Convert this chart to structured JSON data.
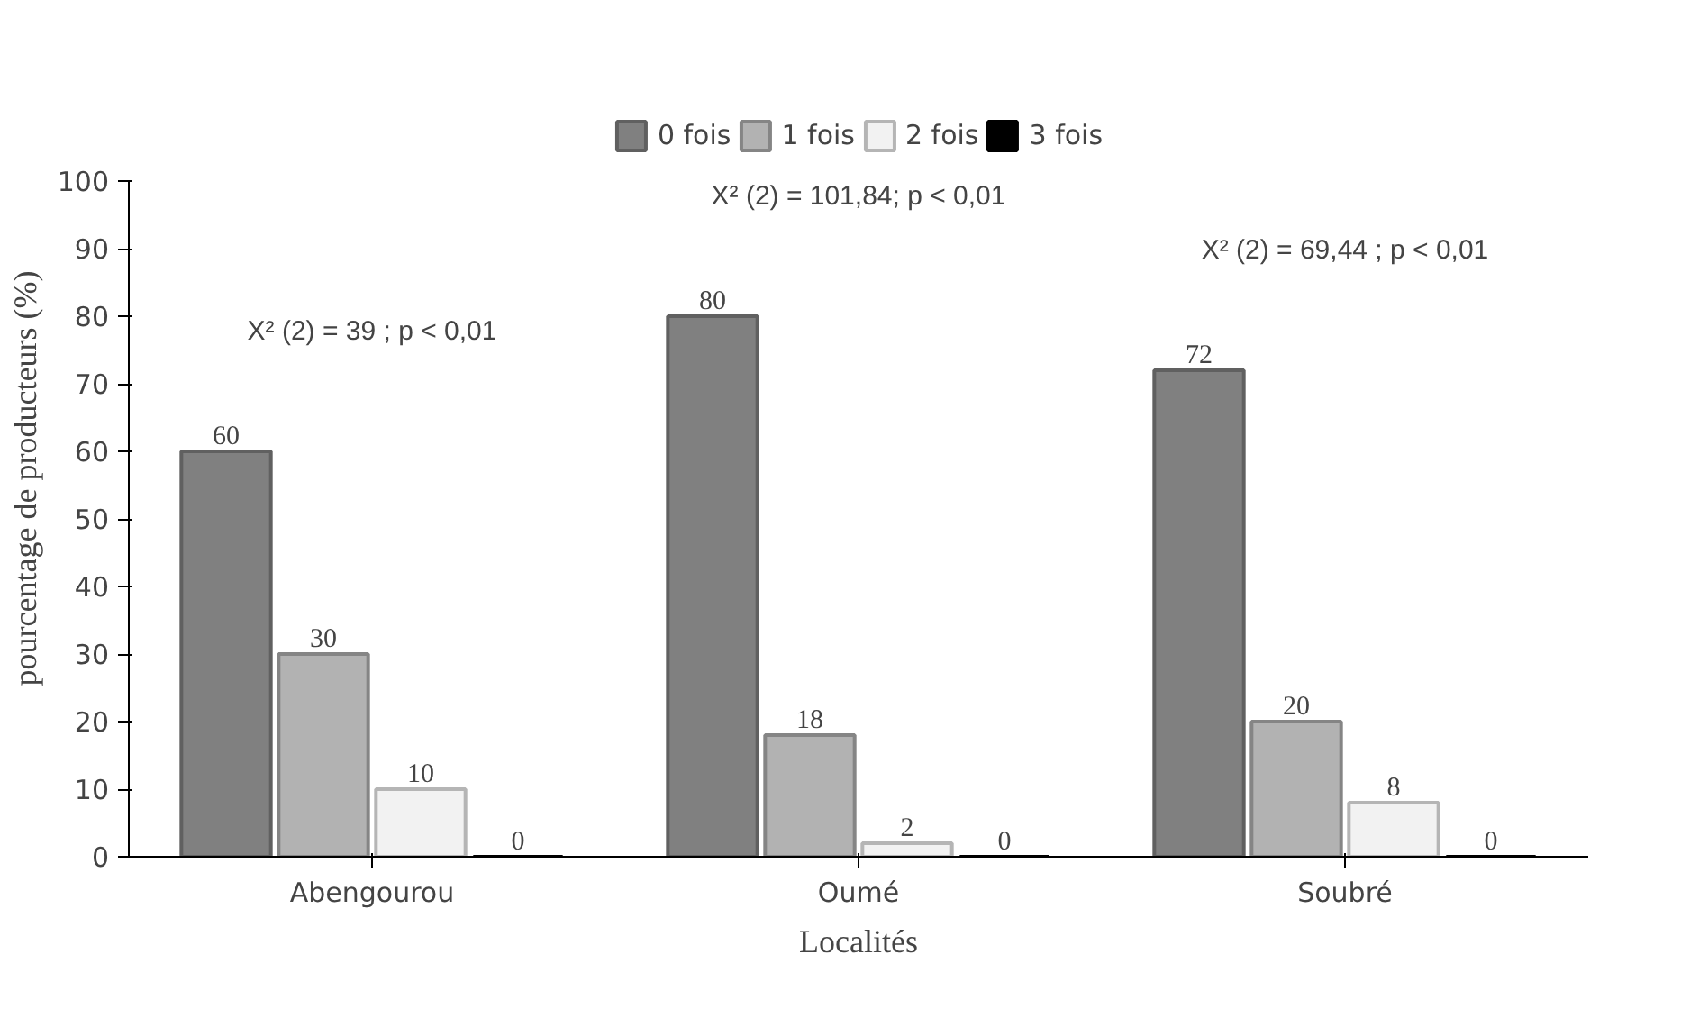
{
  "chart_data": {
    "type": "bar",
    "xlabel": "Localités",
    "ylabel": "pourcentage de producteurs (%)",
    "categories": [
      "Abengourou",
      "Oumé",
      "Soubré"
    ],
    "series": [
      {
        "name": "0 fois",
        "color": "#808080",
        "values": [
          60,
          80,
          72
        ]
      },
      {
        "name": "1 fois",
        "color": "#b2b2b2",
        "values": [
          30,
          18,
          20
        ]
      },
      {
        "name": "2 fois",
        "color": "#f2f2f2",
        "values": [
          10,
          2,
          8
        ]
      },
      {
        "name": "3 fois",
        "color": "#000000",
        "values": [
          0,
          0,
          0
        ]
      }
    ],
    "ylim": [
      0,
      100
    ],
    "yticks": [
      0,
      10,
      20,
      30,
      40,
      50,
      60,
      70,
      80,
      90,
      100
    ],
    "data_labels": true,
    "grid": false,
    "legend": "top",
    "annotations": [
      "X² (2) = 39 ; p < 0,01",
      "X² (2) = 101,84; p < 0,01",
      "X² (2) = 69,44 ; p < 0,01"
    ]
  }
}
